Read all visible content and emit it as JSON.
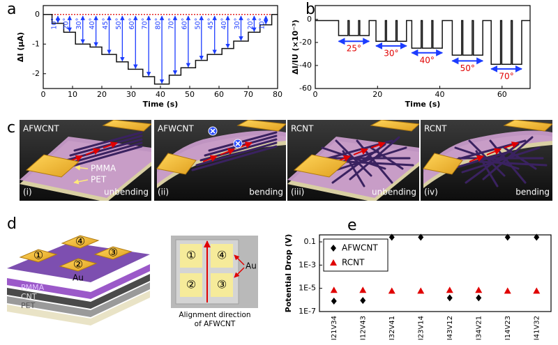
{
  "chart_data": [
    {
      "type": "line",
      "panel": "a",
      "xlabel": "Time (s)",
      "ylabel": "ΔI (μA)",
      "xlim": [
        0,
        80
      ],
      "xticks": [
        0,
        10,
        20,
        30,
        40,
        50,
        60,
        70,
        80
      ],
      "ylim": [
        -2.5,
        0.3
      ],
      "yticks": [
        0,
        -1,
        -2
      ],
      "hline": {
        "y": 0,
        "color": "#e00000"
      },
      "annotation_color": "#1c3cff",
      "annotation_text_color": "#1c3cff",
      "series": [
        {
          "color": "#111111",
          "x": [
            0,
            3,
            3,
            7,
            7,
            11,
            11,
            16,
            16,
            20,
            20,
            25,
            25,
            29,
            29,
            34,
            34,
            38,
            38,
            43,
            43,
            47,
            47,
            52,
            52,
            56,
            56,
            61,
            61,
            65,
            65,
            70,
            70,
            74,
            74,
            78,
            78,
            80
          ],
          "values": [
            0,
            0,
            -0.3,
            -0.3,
            -0.6,
            -0.6,
            -1.0,
            -1.0,
            -1.1,
            -1.1,
            -1.35,
            -1.35,
            -1.6,
            -1.6,
            -1.85,
            -1.85,
            -2.1,
            -2.1,
            -2.35,
            -2.35,
            -2.05,
            -2.05,
            -1.8,
            -1.8,
            -1.55,
            -1.55,
            -1.35,
            -1.35,
            -1.15,
            -1.15,
            -0.9,
            -0.9,
            -0.6,
            -0.6,
            -0.35,
            -0.35,
            0,
            0
          ]
        }
      ],
      "annotations": [
        {
          "x": 5,
          "y": -0.3,
          "text": "10°"
        },
        {
          "x": 9,
          "y": -0.6,
          "text": "20°"
        },
        {
          "x": 13.5,
          "y": -1.0,
          "text": "30°"
        },
        {
          "x": 18,
          "y": -1.1,
          "text": "40°"
        },
        {
          "x": 22.5,
          "y": -1.35,
          "text": "45°"
        },
        {
          "x": 27,
          "y": -1.6,
          "text": "50°"
        },
        {
          "x": 31.5,
          "y": -1.85,
          "text": "60°"
        },
        {
          "x": 36,
          "y": -2.1,
          "text": "70°"
        },
        {
          "x": 40.5,
          "y": -2.35,
          "text": "80°"
        },
        {
          "x": 45,
          "y": -2.05,
          "text": "70°"
        },
        {
          "x": 49.5,
          "y": -1.8,
          "text": "60°"
        },
        {
          "x": 54,
          "y": -1.55,
          "text": "50°"
        },
        {
          "x": 58.5,
          "y": -1.35,
          "text": "45°"
        },
        {
          "x": 63,
          "y": -1.15,
          "text": "40°"
        },
        {
          "x": 67.5,
          "y": -0.9,
          "text": "30°"
        },
        {
          "x": 72,
          "y": -0.6,
          "text": "20°"
        },
        {
          "x": 76,
          "y": -0.35,
          "text": "10°"
        }
      ]
    },
    {
      "type": "line",
      "panel": "b",
      "xlabel": "Time (s)",
      "ylabel": "ΔI/IU (×10⁻³)",
      "xlim": [
        0,
        69
      ],
      "xticks": [
        0,
        20,
        40,
        60
      ],
      "ylim": [
        -60,
        12
      ],
      "yticks": [
        0,
        -20,
        -40,
        -60
      ],
      "annotation_color": "#1c3cff",
      "annotation_text_color": "#e00000",
      "series": [
        {
          "color": "#111111",
          "x": [
            0,
            7.5,
            7.5,
            10.5,
            10.5,
            10.9,
            10.9,
            13.9,
            13.9,
            14.3,
            14.3,
            17.3,
            17.3,
            19.5,
            19.5,
            22.5,
            22.5,
            22.9,
            22.9,
            25.9,
            25.9,
            26.3,
            26.3,
            29.3,
            29.3,
            31,
            31,
            34,
            34,
            34.4,
            34.4,
            37.4,
            37.4,
            37.8,
            37.8,
            40.8,
            40.8,
            44,
            44,
            47,
            47,
            47.4,
            47.4,
            50.4,
            50.4,
            50.8,
            50.8,
            53.8,
            53.8,
            56.5,
            56.5,
            59.5,
            59.5,
            59.9,
            59.9,
            62.9,
            62.9,
            63.3,
            63.3,
            66.3,
            66.3,
            69
          ],
          "values": [
            -1,
            -1,
            -14,
            -14,
            -1,
            -1,
            -14,
            -14,
            -1,
            -1,
            -14,
            -14,
            -1,
            -1,
            -19,
            -19,
            -1,
            -1,
            -19,
            -19,
            -1,
            -1,
            -19,
            -19,
            -1,
            -1,
            -25,
            -25,
            -1,
            -1,
            -25,
            -25,
            -1,
            -1,
            -25,
            -25,
            -1,
            -1,
            -31,
            -31,
            -1,
            -1,
            -31,
            -31,
            -1,
            -1,
            -31,
            -31,
            -1,
            -1,
            -39,
            -39,
            -1,
            -1,
            -39,
            -39,
            -1,
            -1,
            -39,
            -39,
            -1,
            -1
          ]
        }
      ],
      "annotations": [
        {
          "x": [
            7.5,
            17.3
          ],
          "y": -19,
          "text": "25°"
        },
        {
          "x": [
            19.5,
            29.3
          ],
          "y": -23,
          "text": "30°"
        },
        {
          "x": [
            31,
            40.8
          ],
          "y": -29,
          "text": "40°"
        },
        {
          "x": [
            44,
            53.8
          ],
          "y": -36,
          "text": "50°"
        },
        {
          "x": [
            56.5,
            66.3
          ],
          "y": -43,
          "text": "70°"
        }
      ]
    },
    {
      "type": "scatter",
      "panel": "e",
      "ylabel": "Potential Drop (V)",
      "yscale": "log",
      "legend": "upper left",
      "categories": [
        "I21V34",
        "I12V43",
        "I32V41",
        "I23V14",
        "I43V12",
        "I34V21",
        "I14V23",
        "I41V32"
      ],
      "ylim": [
        1e-07,
        0.4
      ],
      "yticks": [
        {
          "value": 1e-07,
          "label": "1E-7"
        },
        {
          "value": 1e-05,
          "label": "1E-5"
        },
        {
          "value": 0.001,
          "label": "1E-3"
        },
        0.1
      ],
      "series": [
        {
          "name": "AFWCNT",
          "color": "#000000",
          "marker": "diamond",
          "values": [
            8e-07,
            9e-07,
            0.25,
            0.25,
            1.5e-06,
            1.5e-06,
            0.25,
            0.25
          ]
        },
        {
          "name": "RCNT",
          "color": "#e00000",
          "marker": "triangle",
          "values": [
            7e-06,
            7e-06,
            6e-06,
            6e-06,
            7e-06,
            7e-06,
            6e-06,
            6e-06
          ]
        }
      ]
    }
  ],
  "panel_c": {
    "panel": "c",
    "pmma": "PMMA",
    "pet": "PET",
    "frames": [
      {
        "title": "AFWCNT",
        "index": "(i)",
        "state": "unbending"
      },
      {
        "title": "AFWCNT",
        "index": "(ii)",
        "state": "bending"
      },
      {
        "title": "RCNT",
        "index": "(iii)",
        "state": "unbending"
      },
      {
        "title": "RCNT",
        "index": "(iv)",
        "state": "bending"
      }
    ]
  },
  "panel_d": {
    "panel": "d",
    "pads": [
      "①",
      "②",
      "③",
      "④"
    ],
    "au": "Au",
    "layers": [
      "PMMA",
      "CNT",
      "PET"
    ],
    "photo": {
      "pads": [
        "①",
        "④",
        "②",
        "③"
      ],
      "au": "Au",
      "caption": [
        "Alignment direction",
        "of AFWCNT"
      ]
    }
  }
}
